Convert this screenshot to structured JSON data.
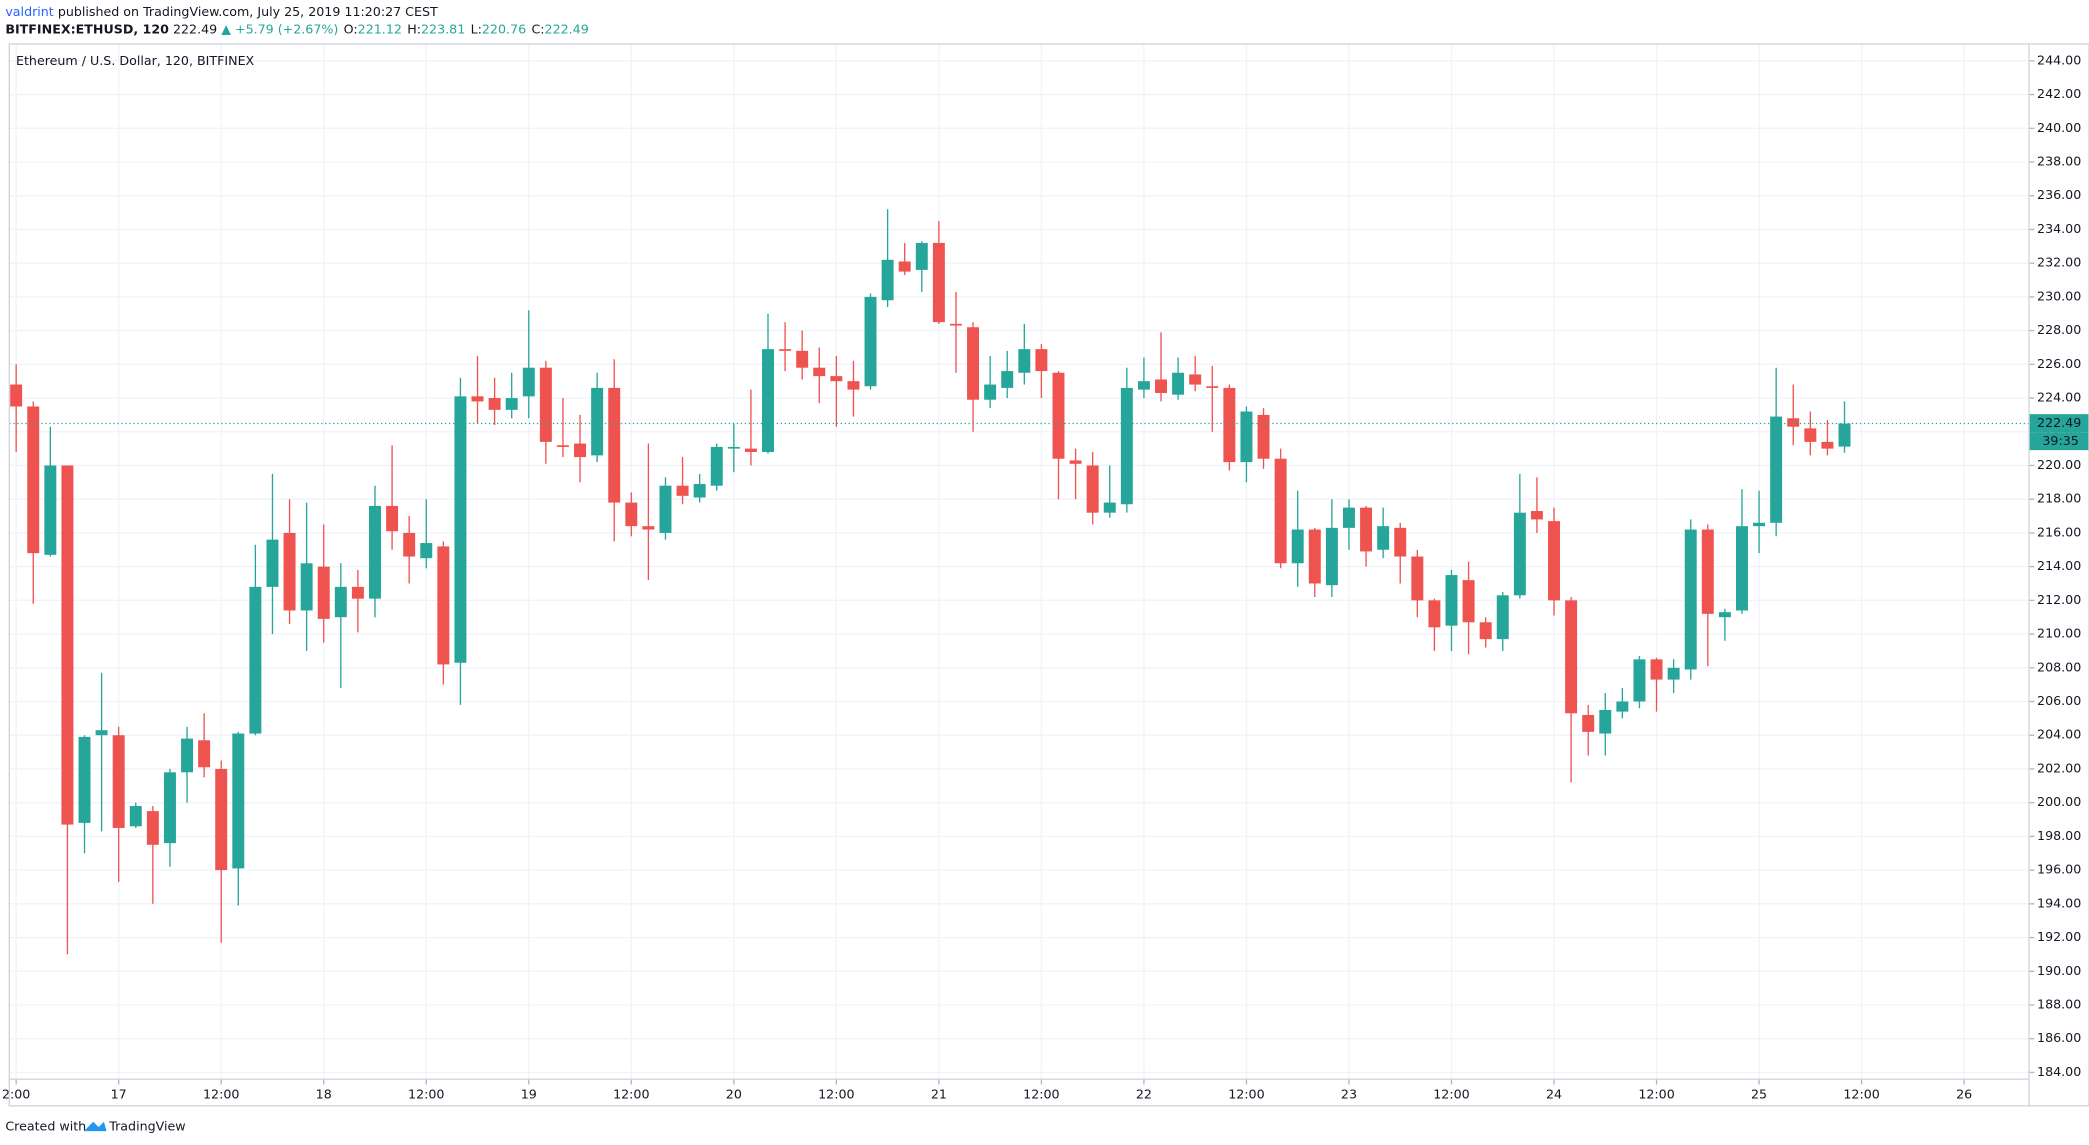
{
  "header": {
    "author": "valdrint",
    "published": "published on TradingView.com, July 25, 2019 11:20:27 CEST",
    "symbol": "BITFINEX:ETHUSD, 120",
    "last": "222.49",
    "change": "▲ +5.79 (+2.67%)",
    "ohlc": [
      {
        "label": "O:",
        "value": "221.12"
      },
      {
        "label": "H:",
        "value": "223.81"
      },
      {
        "label": "L:",
        "value": "220.76"
      },
      {
        "label": "C:",
        "value": "222.49"
      }
    ]
  },
  "footer": {
    "text": "Created with",
    "brand": "TradingView"
  },
  "chart_data": {
    "type": "candlestick",
    "title": "Ethereum / U.S. Dollar, 120, BITFINEX",
    "up_color": "#26a69a",
    "down_color": "#ef5350",
    "grid": true,
    "last_price": 222.49,
    "last_price_label": "222.49",
    "countdown": "39:35",
    "xlim": [
      -0.4,
      117.8
    ],
    "ylim": [
      183.6,
      245
    ],
    "xticks": [
      {
        "value": 0,
        "label": "2:00"
      },
      {
        "value": 6,
        "label": "17"
      },
      {
        "value": 12,
        "label": "12:00"
      },
      {
        "value": 18,
        "label": "18"
      },
      {
        "value": 24,
        "label": "12:00"
      },
      {
        "value": 30,
        "label": "19"
      },
      {
        "value": 36,
        "label": "12:00"
      },
      {
        "value": 42,
        "label": "20"
      },
      {
        "value": 48,
        "label": "12:00"
      },
      {
        "value": 54,
        "label": "21"
      },
      {
        "value": 60,
        "label": "12:00"
      },
      {
        "value": 66,
        "label": "22"
      },
      {
        "value": 72,
        "label": "12:00"
      },
      {
        "value": 78,
        "label": "23"
      },
      {
        "value": 84,
        "label": "12:00"
      },
      {
        "value": 90,
        "label": "24"
      },
      {
        "value": 96,
        "label": "12:00"
      },
      {
        "value": 102,
        "label": "25"
      },
      {
        "value": 108,
        "label": "12:00"
      },
      {
        "value": 114,
        "label": "26"
      }
    ],
    "yticks": [
      {
        "value": 184,
        "label": "184.00"
      },
      {
        "value": 186,
        "label": "186.00"
      },
      {
        "value": 188,
        "label": "188.00"
      },
      {
        "value": 190,
        "label": "190.00"
      },
      {
        "value": 192,
        "label": "192.00"
      },
      {
        "value": 194,
        "label": "194.00"
      },
      {
        "value": 196,
        "label": "196.00"
      },
      {
        "value": 198,
        "label": "198.00"
      },
      {
        "value": 200,
        "label": "200.00"
      },
      {
        "value": 202,
        "label": "202.00"
      },
      {
        "value": 204,
        "label": "204.00"
      },
      {
        "value": 206,
        "label": "206.00"
      },
      {
        "value": 208,
        "label": "208.00"
      },
      {
        "value": 210,
        "label": "210.00"
      },
      {
        "value": 212,
        "label": "212.00"
      },
      {
        "value": 214,
        "label": "214.00"
      },
      {
        "value": 216,
        "label": "216.00"
      },
      {
        "value": 218,
        "label": "218.00"
      },
      {
        "value": 220,
        "label": "220.00"
      },
      {
        "value": 222,
        "label": "222.00"
      },
      {
        "value": 224,
        "label": "224.00"
      },
      {
        "value": 226,
        "label": "226.00"
      },
      {
        "value": 228,
        "label": "228.00"
      },
      {
        "value": 230,
        "label": "230.00"
      },
      {
        "value": 232,
        "label": "232.00"
      },
      {
        "value": 234,
        "label": "234.00"
      },
      {
        "value": 236,
        "label": "236.00"
      },
      {
        "value": 238,
        "label": "238.00"
      },
      {
        "value": 240,
        "label": "240.00"
      },
      {
        "value": 242,
        "label": "242.00"
      },
      {
        "value": 244,
        "label": "244.00"
      }
    ],
    "open": [
      224.8,
      223.5,
      214.7,
      220,
      198.8,
      204,
      204,
      198.6,
      199.5,
      197.6,
      201.8,
      203.7,
      202,
      196.1,
      204.1,
      212.8,
      216,
      211.4,
      214,
      211,
      212.8,
      212.1,
      217.6,
      216,
      214.5,
      215.2,
      208.3,
      224.1,
      224,
      223.3,
      224.1,
      225.8,
      221.2,
      221.3,
      220.6,
      224.6,
      217.8,
      216.4,
      216,
      218.8,
      218.1,
      218.8,
      221,
      221,
      220.8,
      226.9,
      226.8,
      225.8,
      225.3,
      225,
      224.7,
      229.8,
      232.1,
      231.6,
      233.2,
      228.4,
      228.2,
      223.9,
      224.6,
      225.5,
      226.9,
      225.5,
      220.3,
      220,
      217.2,
      217.7,
      224.5,
      225.1,
      224.2,
      225.4,
      224.7,
      224.6,
      220.2,
      223,
      220.4,
      214.2,
      216.2,
      212.9,
      216.3,
      217.5,
      215,
      216.3,
      214.6,
      212,
      210.5,
      213.2,
      210.7,
      209.7,
      212.3,
      217.3,
      216.7,
      212,
      205.2,
      204.1,
      205.4,
      206,
      208.5,
      207.3,
      207.9,
      216.2,
      211,
      211.4,
      216.4,
      216.6,
      222.8,
      222.2,
      221.4,
      221.12
    ],
    "high": [
      226,
      223.8,
      222.3,
      220,
      204,
      207.7,
      204.5,
      200,
      199.8,
      202,
      204.5,
      205.3,
      202.5,
      204.2,
      215.3,
      219.5,
      218,
      217.8,
      216.5,
      214.2,
      213.8,
      218.8,
      221.2,
      217,
      218,
      215.5,
      225.2,
      226.5,
      225.2,
      225.5,
      229.2,
      226.2,
      224,
      223,
      225.5,
      226.3,
      218.4,
      221.3,
      219.3,
      220.5,
      219.5,
      221.3,
      222.5,
      224.5,
      229,
      228.5,
      228,
      227,
      226.5,
      226.2,
      230.2,
      235.2,
      233.2,
      233.3,
      234.5,
      230.3,
      228.5,
      226.5,
      226.8,
      228.4,
      227.2,
      225.6,
      221,
      220.8,
      220,
      225.8,
      226.4,
      227.9,
      226.4,
      226.5,
      225.9,
      224.8,
      223.5,
      223.4,
      221,
      218.5,
      216.3,
      218,
      218,
      217.6,
      217.5,
      216.6,
      215,
      212.1,
      213.8,
      214.3,
      211,
      212.5,
      219.5,
      219.3,
      217.5,
      212.2,
      205.8,
      206.5,
      206.8,
      208.7,
      208.6,
      208.5,
      216.8,
      216.5,
      211.5,
      218.6,
      218.5,
      225.8,
      224.8,
      223.2,
      222.7,
      223.81
    ],
    "low": [
      220.8,
      211.8,
      214.6,
      191,
      197,
      198.3,
      195.3,
      198.5,
      194,
      196.2,
      200,
      201.5,
      191.7,
      193.9,
      204,
      210,
      210.6,
      209,
      209.5,
      206.8,
      210.1,
      211,
      215,
      213,
      213.9,
      207,
      205.8,
      222.5,
      222.4,
      222.8,
      222.8,
      220.1,
      220.5,
      219,
      220.2,
      215.5,
      215.8,
      213.2,
      215.6,
      217.7,
      217.8,
      218.5,
      219.6,
      220,
      220.7,
      225.6,
      225.1,
      223.7,
      222.3,
      222.9,
      224.5,
      229.4,
      231.3,
      230.3,
      228.4,
      225.5,
      222,
      223.4,
      224,
      224.8,
      224,
      218,
      218,
      216.5,
      216.9,
      217.2,
      224,
      223.8,
      223.9,
      224.4,
      222,
      219.7,
      219,
      219.8,
      213.9,
      212.8,
      212.2,
      212.2,
      215,
      214,
      214.5,
      213,
      211,
      209,
      209,
      208.8,
      209.2,
      209,
      212.1,
      216,
      211.1,
      201.2,
      202.8,
      202.8,
      205,
      205.6,
      205.4,
      206.5,
      207.3,
      208.1,
      209.6,
      211.2,
      214.8,
      215.8,
      221.2,
      220.6,
      220.6,
      220.76
    ],
    "close": [
      223.5,
      214.8,
      220,
      198.7,
      203.9,
      204.3,
      198.5,
      199.8,
      197.5,
      201.8,
      203.8,
      202.1,
      196,
      204.1,
      212.8,
      215.6,
      211.4,
      214.2,
      210.9,
      212.8,
      212.1,
      217.6,
      216.1,
      214.6,
      215.4,
      208.2,
      224.1,
      223.8,
      223.3,
      224,
      225.8,
      221.4,
      221.1,
      220.5,
      224.6,
      217.8,
      216.4,
      216.2,
      218.8,
      218.2,
      218.9,
      221.1,
      221.1,
      220.8,
      226.9,
      226.8,
      225.8,
      225.3,
      225,
      224.5,
      230,
      232.2,
      231.5,
      233.2,
      228.5,
      228.3,
      223.9,
      224.8,
      225.6,
      226.9,
      225.6,
      220.4,
      220.1,
      217.2,
      217.8,
      224.6,
      225,
      224.3,
      225.5,
      224.8,
      224.6,
      220.2,
      223.2,
      220.4,
      214.2,
      216.2,
      213,
      216.3,
      217.5,
      214.9,
      216.4,
      214.6,
      212,
      210.4,
      213.5,
      210.7,
      209.7,
      212.3,
      217.2,
      216.8,
      212,
      205.3,
      204.2,
      205.5,
      206,
      208.5,
      207.3,
      208,
      216.2,
      211.2,
      211.3,
      216.4,
      216.6,
      222.9,
      222.3,
      221.4,
      221,
      222.49
    ]
  }
}
